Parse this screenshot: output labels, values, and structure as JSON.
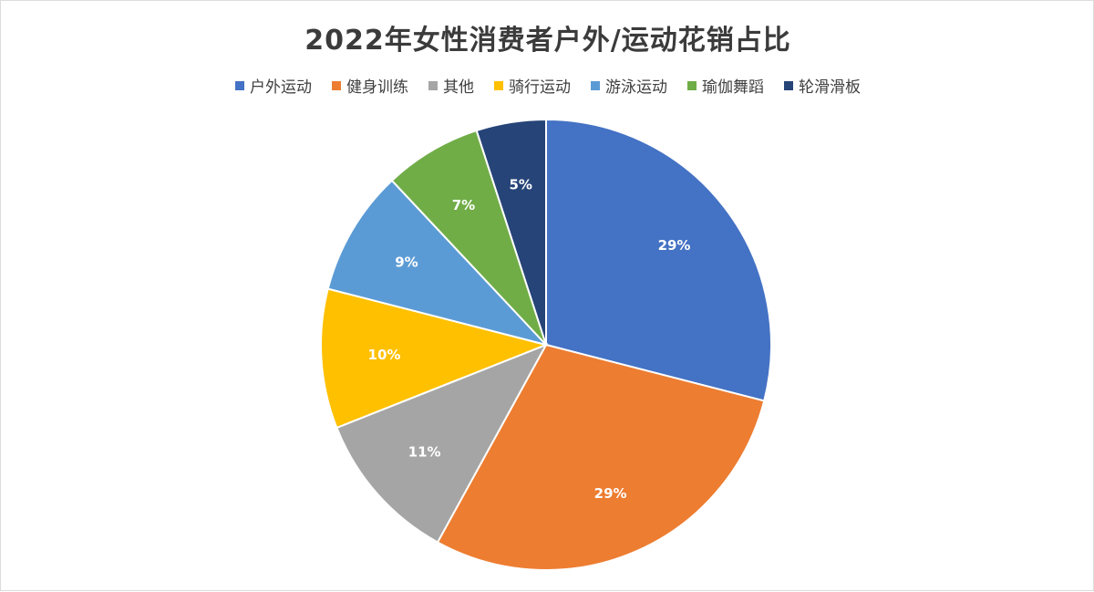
{
  "chart_data": {
    "type": "pie",
    "title": "2022年女性消费者户外/运动花销占比",
    "legend_position": "top",
    "slices": [
      {
        "label": "户外运动",
        "value": 29,
        "display": "29%",
        "color": "#4472C4"
      },
      {
        "label": "健身训练",
        "value": 29,
        "display": "29%",
        "color": "#ED7D31"
      },
      {
        "label": "其他",
        "value": 11,
        "display": "11%",
        "color": "#A5A5A5"
      },
      {
        "label": "骑行运动",
        "value": 10,
        "display": "10%",
        "color": "#FFC000"
      },
      {
        "label": "游泳运动",
        "value": 9,
        "display": "9%",
        "color": "#5B9BD5"
      },
      {
        "label": "瑜伽舞蹈",
        "value": 7,
        "display": "7%",
        "color": "#70AD47"
      },
      {
        "label": "轮滑滑板",
        "value": 5,
        "display": "5%",
        "color": "#264478"
      }
    ]
  }
}
